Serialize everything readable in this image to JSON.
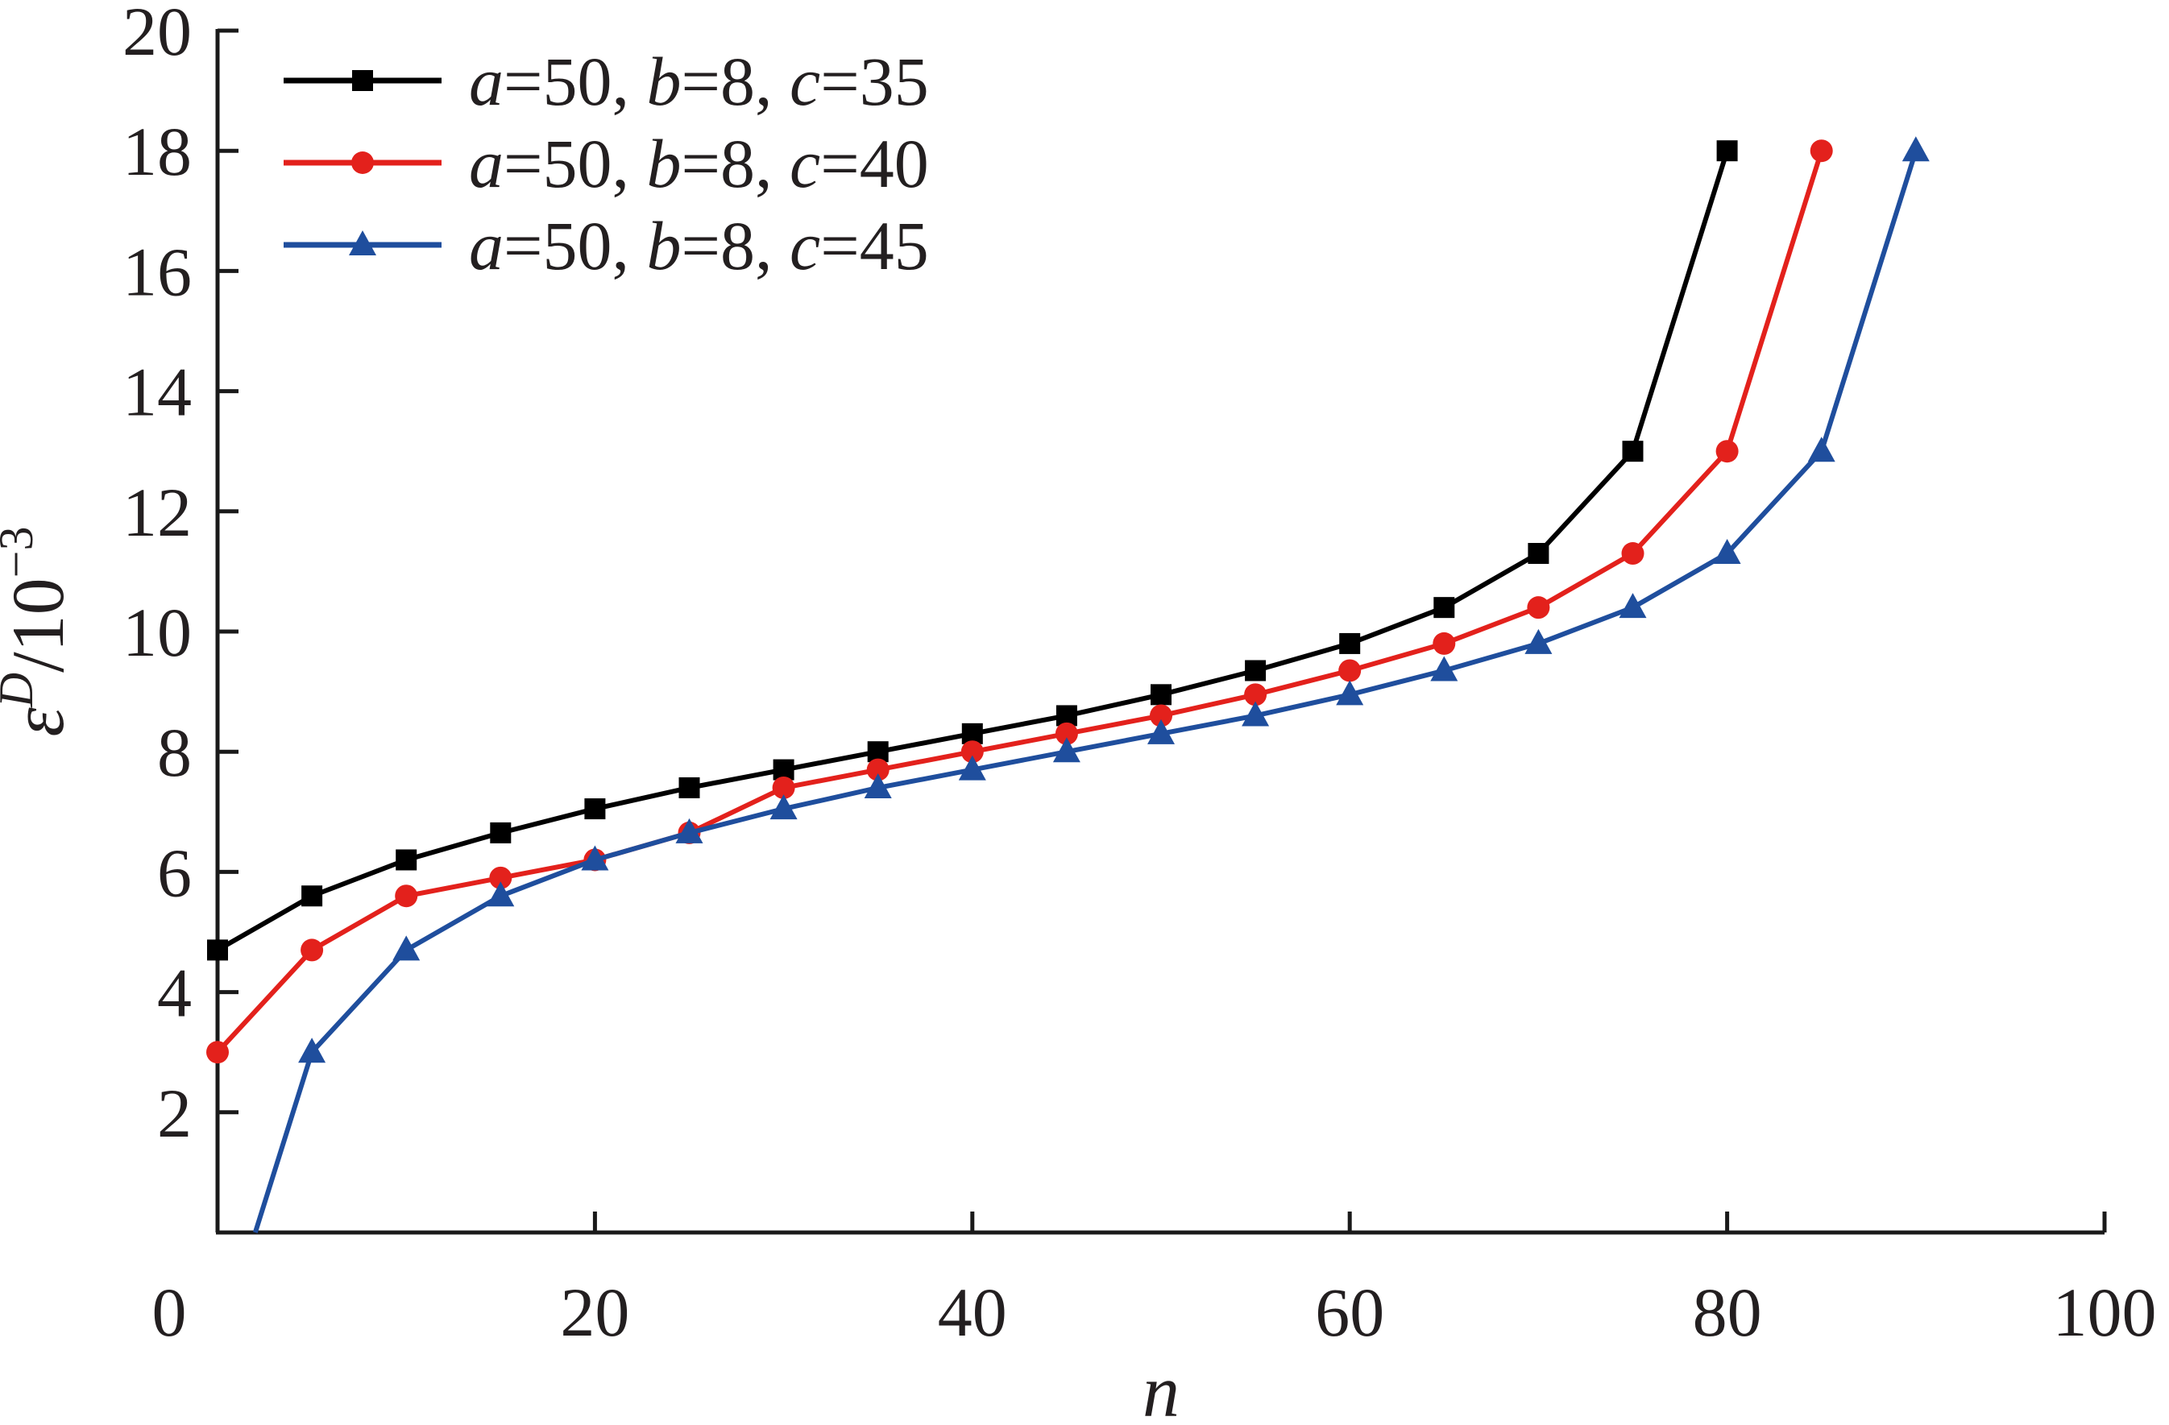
{
  "chart_data": {
    "type": "line",
    "xlabel": "n",
    "ylabel": {
      "symbol": "ε",
      "superscript": "D",
      "unit_prefix": "/10",
      "unit_exponent": "−3"
    },
    "xlim": [
      0,
      100
    ],
    "ylim": [
      0,
      20
    ],
    "xticks": [
      "0",
      "20",
      "40",
      "60",
      "80",
      "100"
    ],
    "yticks": [
      "2",
      "4",
      "6",
      "8",
      "10",
      "12",
      "14",
      "16",
      "18",
      "20"
    ],
    "grid": false,
    "legend_position": "top-left",
    "series": [
      {
        "name": "a=50, b=8, c=35",
        "name_parts": [
          {
            "t": "a",
            "i": true
          },
          {
            "t": "=50, ",
            "i": false
          },
          {
            "t": "b",
            "i": true
          },
          {
            "t": "=8, ",
            "i": false
          },
          {
            "t": "c",
            "i": true
          },
          {
            "t": "=35",
            "i": false
          }
        ],
        "color": "#000000",
        "marker": "square",
        "x": [
          0,
          5,
          10,
          15,
          20,
          25,
          30,
          35,
          40,
          45,
          50,
          55,
          60,
          65,
          70,
          75,
          80
        ],
        "y": [
          4.7,
          5.6,
          6.2,
          6.65,
          7.05,
          7.4,
          7.7,
          8.0,
          8.3,
          8.6,
          8.95,
          9.35,
          9.8,
          10.4,
          11.3,
          13.0,
          18.0
        ]
      },
      {
        "name": "a=50, b=8, c=40",
        "name_parts": [
          {
            "t": "a",
            "i": true
          },
          {
            "t": "=50, ",
            "i": false
          },
          {
            "t": "b",
            "i": true
          },
          {
            "t": "=8, ",
            "i": false
          },
          {
            "t": "c",
            "i": true
          },
          {
            "t": "=40",
            "i": false
          }
        ],
        "color": "#e3211c",
        "marker": "circle",
        "x": [
          0,
          5,
          10,
          15,
          20,
          25,
          30,
          35,
          40,
          45,
          50,
          55,
          60,
          65,
          70,
          75,
          80,
          85
        ],
        "y": [
          3.0,
          4.7,
          5.6,
          5.9,
          6.2,
          6.65,
          7.4,
          7.7,
          8.0,
          8.3,
          8.6,
          8.95,
          9.35,
          9.8,
          10.4,
          11.3,
          13.0,
          18.0
        ]
      },
      {
        "name": "a=50, b=8, c=45",
        "name_parts": [
          {
            "t": "a",
            "i": true
          },
          {
            "t": "=50, ",
            "i": false
          },
          {
            "t": "b",
            "i": true
          },
          {
            "t": "=8, ",
            "i": false
          },
          {
            "t": "c",
            "i": true
          },
          {
            "t": "=45",
            "i": false
          }
        ],
        "color": "#1f4e9d",
        "marker": "triangle",
        "x": [
          2,
          5,
          10,
          15,
          20,
          25,
          30,
          35,
          40,
          45,
          50,
          55,
          60,
          65,
          70,
          75,
          80,
          85,
          90
        ],
        "y": [
          0,
          3.0,
          4.7,
          5.6,
          6.2,
          6.65,
          7.05,
          7.4,
          7.7,
          8.0,
          8.3,
          8.6,
          8.95,
          9.35,
          9.8,
          10.4,
          11.3,
          13.0,
          18.0
        ]
      }
    ]
  }
}
